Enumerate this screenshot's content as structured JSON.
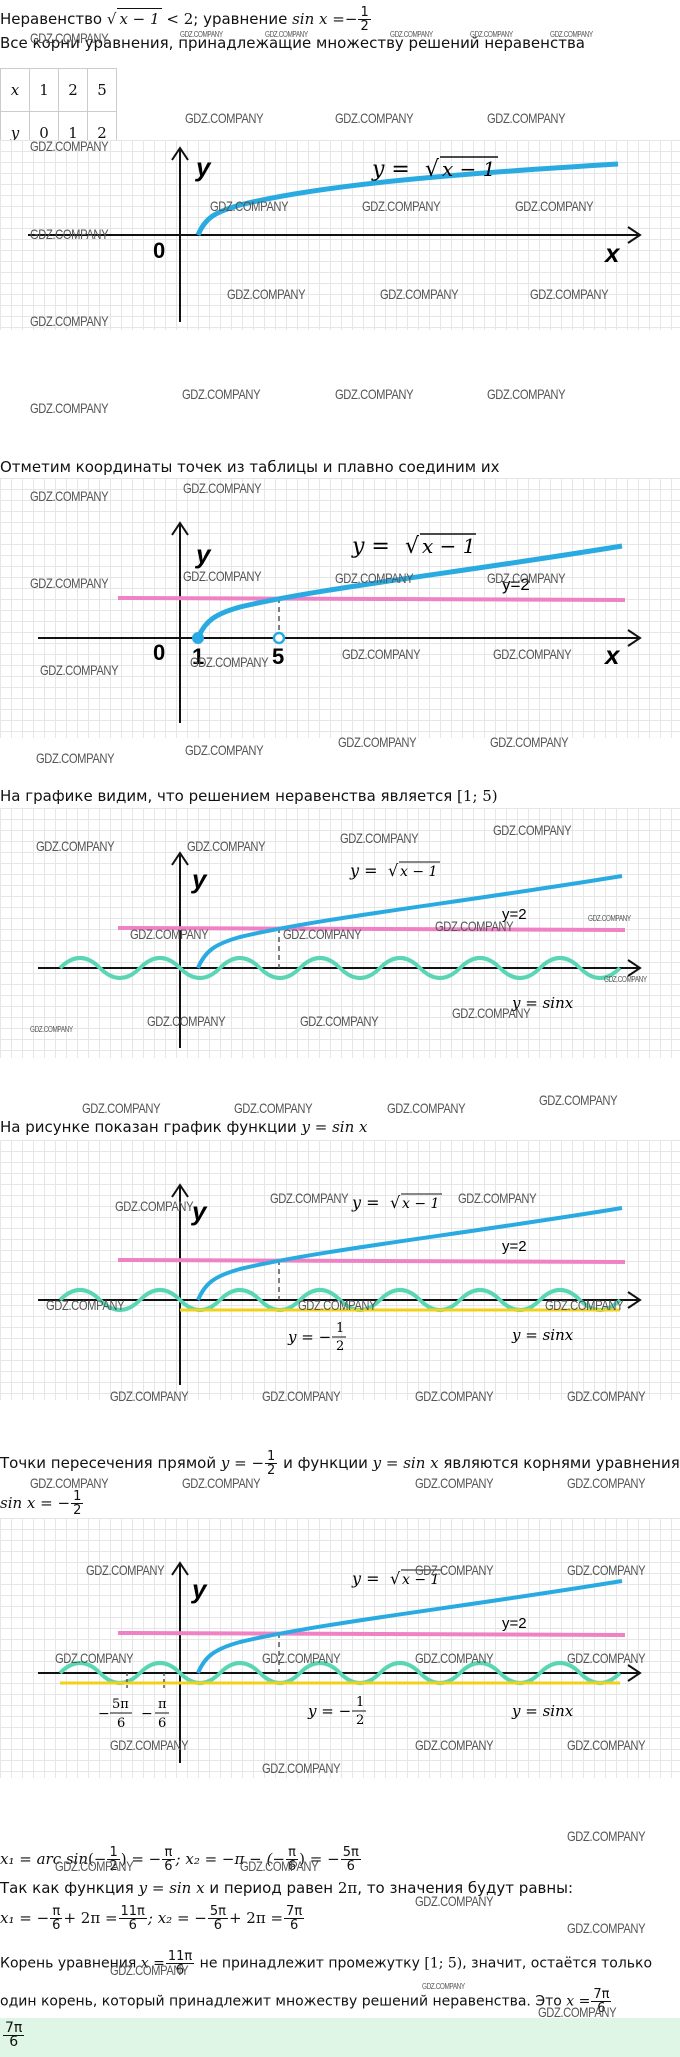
{
  "title": {
    "prefix": "Неравенство",
    "rad": "x − 1",
    "lt": "<",
    "num": "2",
    "mid": "; уравнение",
    "sin_expr": "sin x",
    "eq": "=",
    "neg": "−",
    "fn": "1",
    "fd": "2"
  },
  "intro_text": "Все корни уравнения, принадлежащие множеству решений неравенства",
  "table": {
    "x_label": "x",
    "y_label": "y",
    "x_values": [
      "1",
      "2",
      "5"
    ],
    "y_values": [
      "0",
      "1",
      "2"
    ]
  },
  "graph1": {
    "y_label": "y",
    "x_label": "x",
    "origin": "0",
    "formula_prefix": "y = ",
    "formula_rad": "x − 1"
  },
  "step2_text": "Отметим координаты точек из таблицы и плавно соединим их",
  "graph2": {
    "y_label": "y",
    "x_label": "x",
    "origin": "0",
    "tick_1": "1",
    "tick_5": "5",
    "line_label": "y=2",
    "formula_prefix": "y = ",
    "formula_rad": "x − 1"
  },
  "step3": {
    "text": "На графике видим, что решением неравенства является",
    "interval": "[1;  5)"
  },
  "graph3": {
    "y_label": "y",
    "line_label": "y=2",
    "formula_prefix": "y = ",
    "formula_rad": "x − 1",
    "sin_label": "y = sinx"
  },
  "step4": {
    "text": "На рисунке показан график функции",
    "fn": "y = sin x"
  },
  "graph4": {
    "y_label": "y",
    "line_label": "y=2",
    "formula_prefix": "y = ",
    "formula_rad": "x − 1",
    "sin_label": "y = sinx",
    "hline_prefix": "y = −",
    "hn": "1",
    "hd": "2"
  },
  "step5": {
    "p1": "Точки пересечения прямой",
    "lhs": "y = −",
    "fn": "1",
    "fd": "2",
    "p2": "и функции",
    "fn2": "y = sin x",
    "p3": "являются корнями уравнения",
    "eq": "sin x = −"
  },
  "graph5": {
    "y_label": "y",
    "line_label": "y=2",
    "formula_prefix": "y = ",
    "formula_rad": "x − 1",
    "sin_label": "y = sinx",
    "hline_prefix": "y = −",
    "hn": "1",
    "hd": "2",
    "root1_n": "5π",
    "root1_d": "6",
    "root2_n": "π",
    "root2_d": "6",
    "minus": "−"
  },
  "solution": {
    "x1_a": "x₁ = arc sin",
    "x1_b": "(−",
    "x1_c": ") = −",
    "x1_d": "; x₂ = −π − (−",
    "x1_e": ") = −",
    "half_n": "1",
    "half_d": "2",
    "pi_n": "π",
    "pi_d": "6",
    "five_n": "5π",
    "five_d": "6"
  },
  "period": {
    "p1": "Так как функция",
    "fn": "y = sin x",
    "p2": "и период равен",
    "per": "2π",
    "p3": ", то значения будут равны:"
  },
  "values": {
    "a": "x₁ = −",
    "b": "+ 2π =",
    "c": "; x₂ = −",
    "d": "+ 2π =",
    "pi_n": "π",
    "pi_d": "6",
    "r1_n": "11π",
    "r1_d": "6",
    "five_n": "5π",
    "five_d": "6",
    "r2_n": "7π",
    "r2_d": "6"
  },
  "conclusion": {
    "p1": "Корень уравнения",
    "lhs": "x =",
    "r_n": "11π",
    "r_d": "6",
    "p2": "не принадлежит промежутку",
    "interval": "[1;  5)",
    "p3": ", значит, остаётся только",
    "p4": "один корень, который принадлежит множеству решений неравенства. Это",
    "ans_lhs": "x =",
    "a_n": "7π",
    "a_d": "6"
  },
  "answer": {
    "n": "7π",
    "d": "6"
  },
  "watermark": "GDZ.COMPANY",
  "colors": {
    "sqrt_curve": "#29abe2",
    "line_y2": "#ee82c4",
    "sine": "#5ad6b4",
    "hline": "#f2d11d",
    "axis": "#111111"
  }
}
